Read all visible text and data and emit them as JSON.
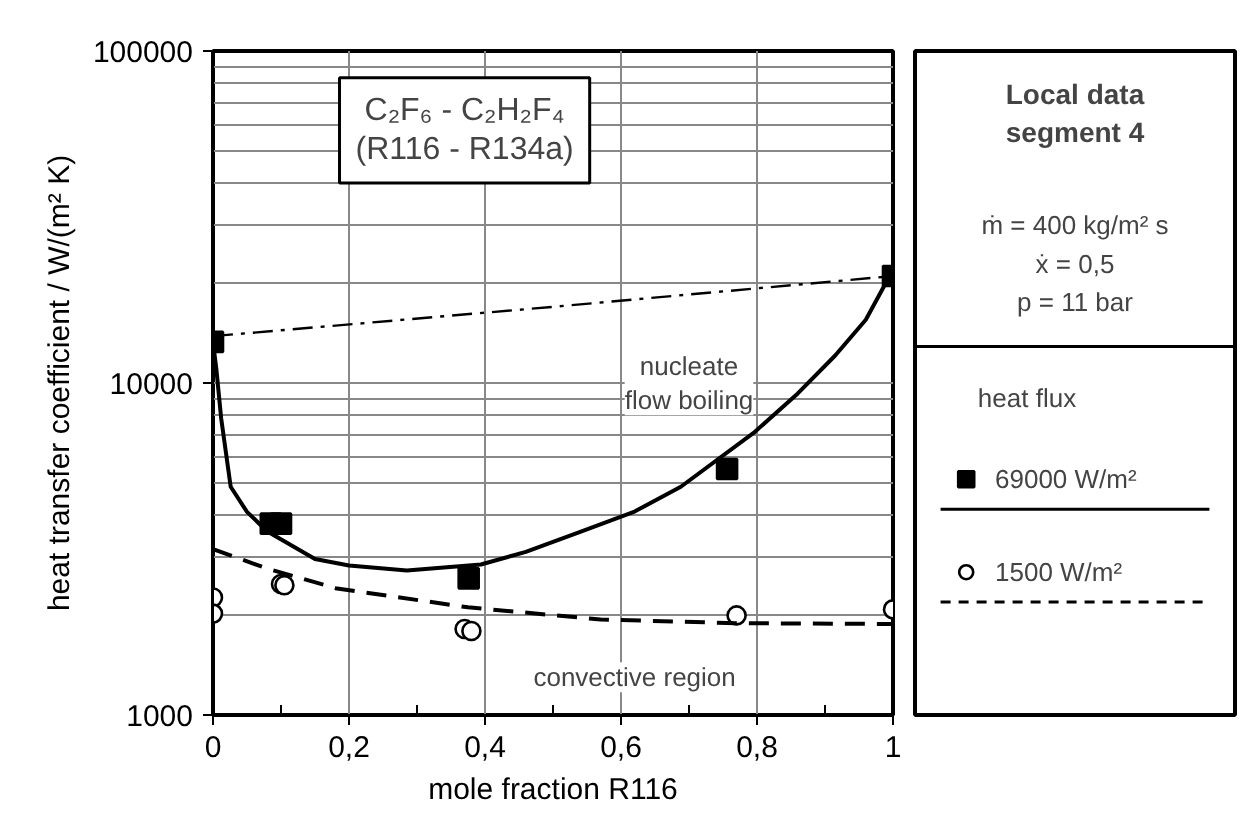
{
  "chart_data": {
    "type": "scatter",
    "title": "C₂F₆ - C₂H₂F₄\n(R116 - R134a)",
    "subtitle": "Local data\nsegment 4",
    "xlabel": "mole fraction R116",
    "ylabel": "heat transfer coefficient / W/(m² K)",
    "legend_title": "heat flux",
    "annotations": [
      "ṁ = 400 kg/m² s",
      "ẋ = 0,5",
      "p = 11 bar",
      "nucleate\nflow boiling",
      "convective region"
    ],
    "xlim": [
      0,
      1
    ],
    "xticks": [
      0,
      {
        "value": 0.2,
        "label": "0,2"
      },
      {
        "value": 0.4,
        "label": "0,4"
      },
      {
        "value": 0.6,
        "label": "0,6"
      },
      {
        "value": 0.8,
        "label": "0,8"
      },
      1
    ],
    "ylim": [
      1000,
      100000
    ],
    "yticks": [
      1000,
      10000,
      100000
    ],
    "log": "y",
    "grid": true,
    "legend": "right",
    "series": [
      {
        "type": "line",
        "line_style": "dashdot",
        "color": "#000000",
        "x": [
          0,
          0.5,
          1
        ],
        "values": [
          13840,
          16960,
          21000
        ]
      },
      {
        "name": "69000 W/m²",
        "marker": "square",
        "color": "#000000",
        "x": [
          0,
          0.085,
          0.1,
          0.376,
          0.756,
          1
        ],
        "values": [
          13300,
          3770,
          3770,
          2580,
          5510,
          21000
        ]
      },
      {
        "type": "line",
        "line_style": "solid",
        "color": "#000000",
        "x": [
          0,
          0.005,
          0.012,
          0.026,
          0.05,
          0.08,
          0.15,
          0.2,
          0.285,
          0.394,
          0.46,
          0.541,
          0.62,
          0.688,
          0.797,
          0.86,
          0.915,
          0.96,
          0.995
        ],
        "values": [
          13300,
          10980,
          7830,
          4870,
          4090,
          3570,
          2950,
          2820,
          2725,
          2840,
          3100,
          3570,
          4100,
          4870,
          7130,
          9300,
          12100,
          15500,
          21000
        ]
      },
      {
        "name": "1500 W/m²",
        "marker": "circle",
        "color": "#000000",
        "x": [
          0,
          0,
          0.1,
          0.105,
          0.37,
          0.38,
          0.77,
          1
        ],
        "values": [
          2260,
          2020,
          2480,
          2460,
          1815,
          1790,
          1995,
          2080
        ]
      },
      {
        "type": "line",
        "line_style": "dashed",
        "color": "#000000",
        "x": [
          0,
          0.08,
          0.18,
          0.375,
          0.57,
          0.77,
          1
        ],
        "values": [
          3160,
          2760,
          2410,
          2110,
          1940,
          1890,
          1880
        ]
      }
    ]
  }
}
